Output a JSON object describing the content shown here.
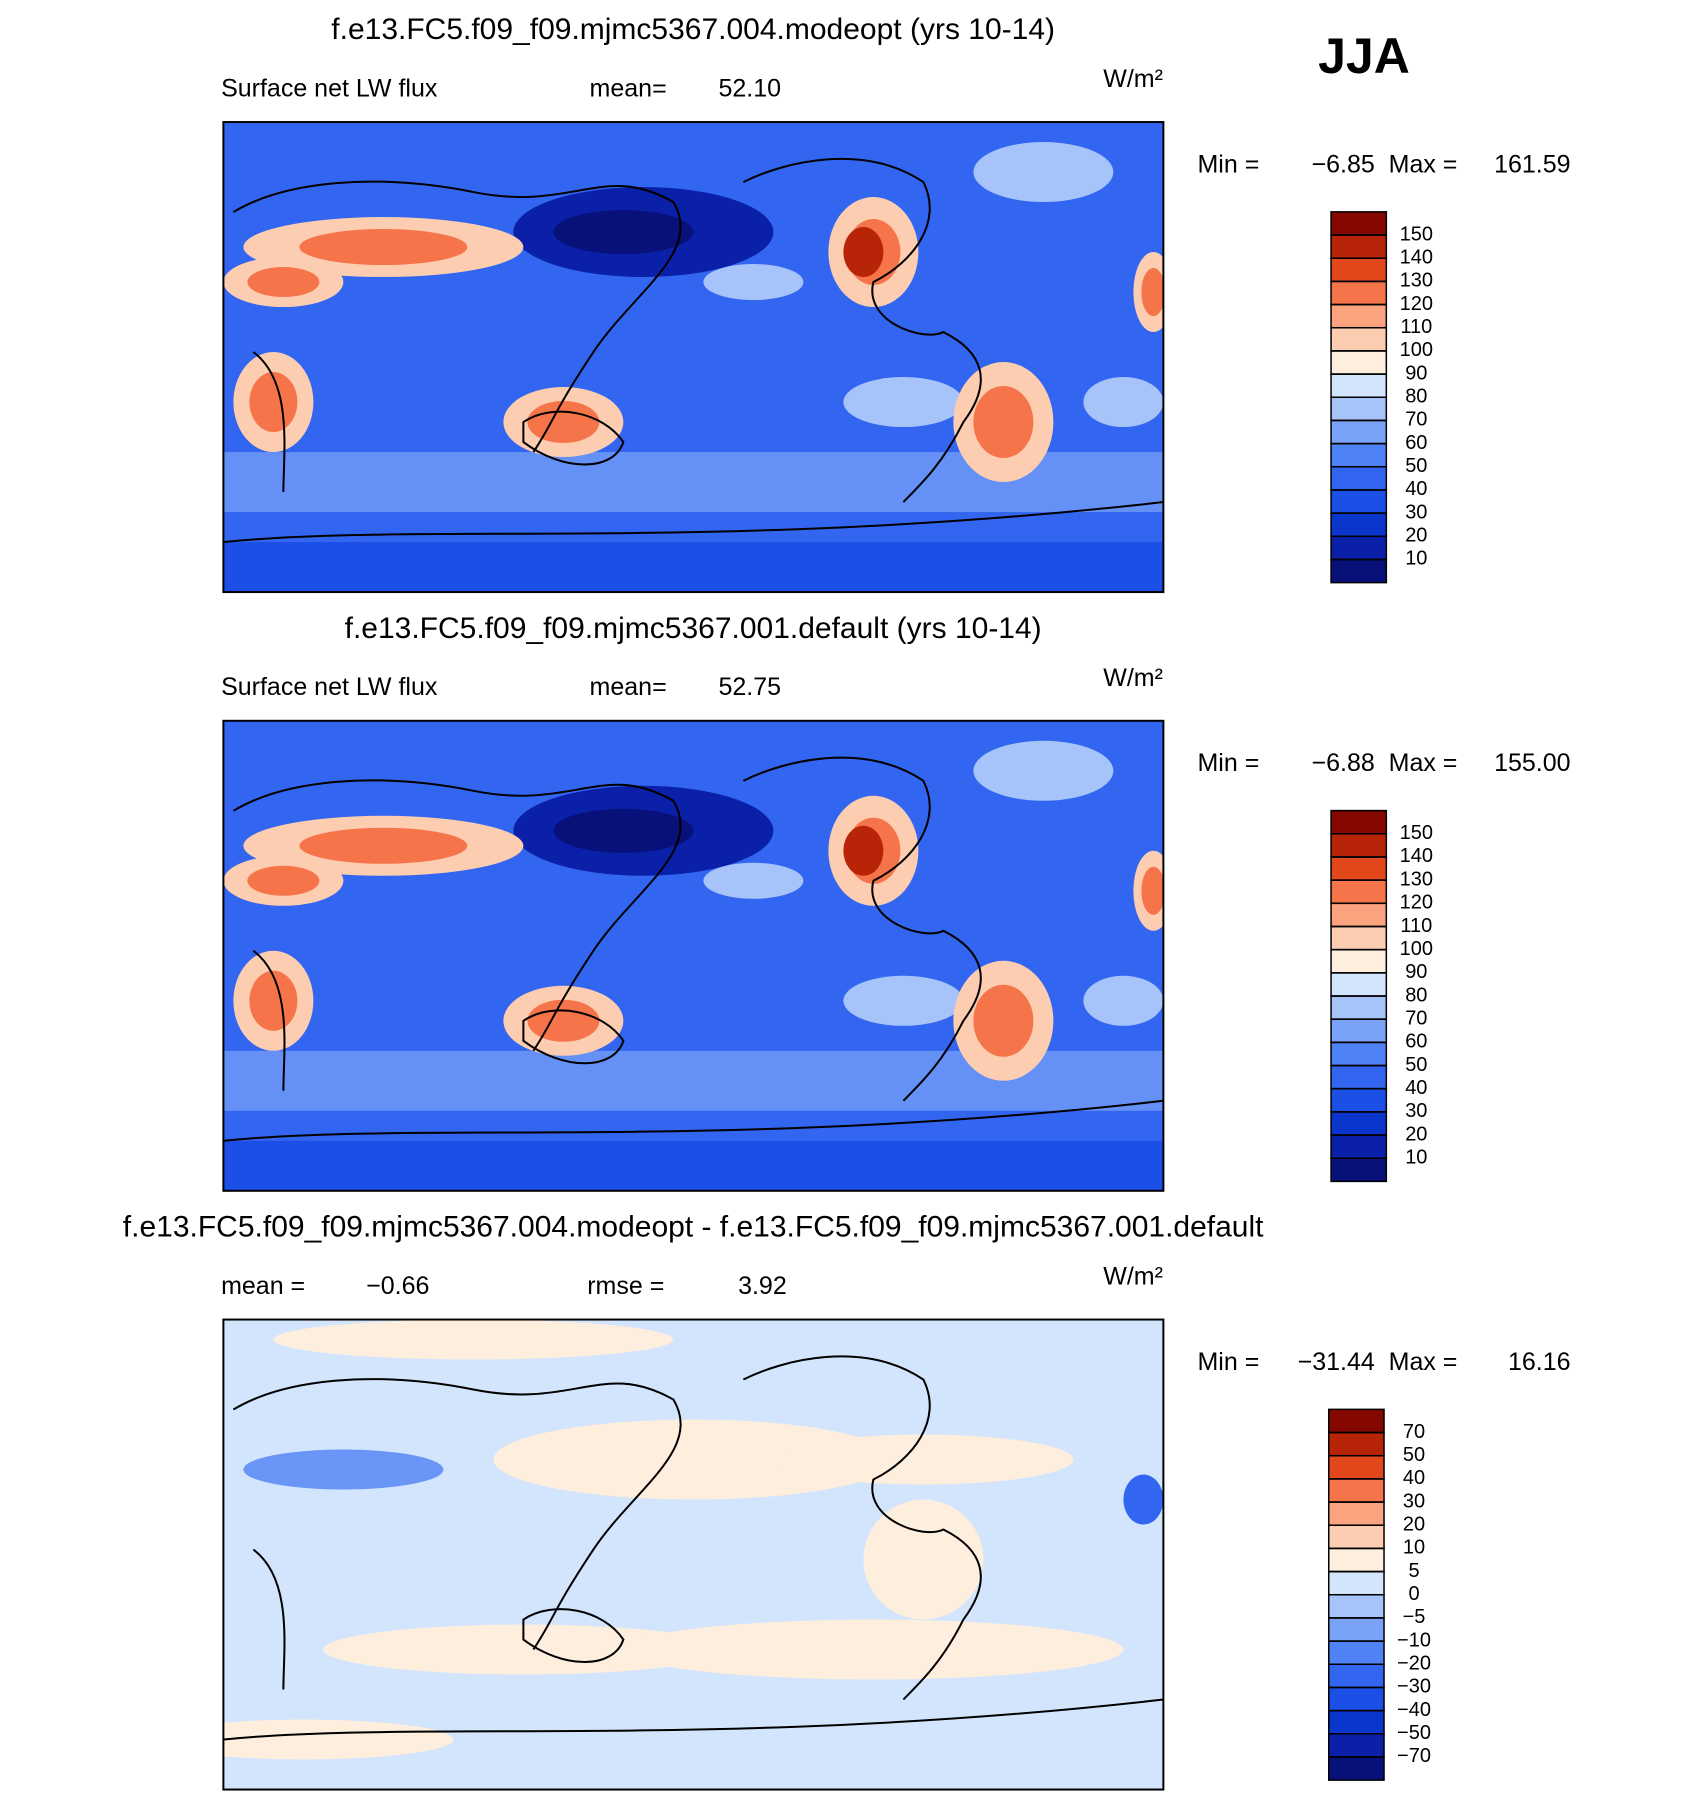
{
  "chart_data": [
    {
      "type": "map",
      "title": "f.e13.FC5.f09_f09.mjmc5367.004.modeopt (yrs 10-14)",
      "header": [
        "Surface net LW flux",
        "mean=",
        "52.10"
      ],
      "units": "W/m²",
      "stats": [
        "Min =",
        "−6.85",
        "Max =",
        "161.59"
      ],
      "season": "JJA",
      "colorbar": {
        "levels": [
          10,
          20,
          30,
          40,
          50,
          60,
          70,
          80,
          90,
          100,
          110,
          120,
          130,
          140,
          150
        ],
        "colors": [
          "#08107a",
          "#0a20a8",
          "#0b36cc",
          "#1c4fe6",
          "#3366f0",
          "#4f82f4",
          "#7aa2f7",
          "#a6c3fa",
          "#d3e4fd",
          "#fdeedd",
          "#fccdb0",
          "#fba27e",
          "#f6744a",
          "#e3481c",
          "#b82408",
          "#850800"
        ]
      }
    },
    {
      "type": "map",
      "title": "f.e13.FC5.f09_f09.mjmc5367.001.default (yrs 10-14)",
      "header": [
        "Surface net LW flux",
        "mean=",
        "52.75"
      ],
      "units": "W/m²",
      "stats": [
        "Min =",
        "−6.88",
        "Max =",
        "155.00"
      ],
      "colorbar": {
        "levels": [
          10,
          20,
          30,
          40,
          50,
          60,
          70,
          80,
          90,
          100,
          110,
          120,
          130,
          140,
          150
        ],
        "colors": [
          "#08107a",
          "#0a20a8",
          "#0b36cc",
          "#1c4fe6",
          "#3366f0",
          "#4f82f4",
          "#7aa2f7",
          "#a6c3fa",
          "#d3e4fd",
          "#fdeedd",
          "#fccdb0",
          "#fba27e",
          "#f6744a",
          "#e3481c",
          "#b82408",
          "#850800"
        ]
      }
    },
    {
      "type": "map",
      "title": "f.e13.FC5.f09_f09.mjmc5367.004.modeopt - f.e13.FC5.f09_f09.mjmc5367.001.default",
      "header": [
        "mean =",
        "−0.66",
        "rmse =",
        "3.92"
      ],
      "units": "W/m²",
      "stats": [
        "Min =",
        "−31.44",
        "Max =",
        "16.16"
      ],
      "colorbar": {
        "levels": [
          {
            "value": -70,
            "label": "−70"
          },
          {
            "value": -50,
            "label": "−50"
          },
          {
            "value": -40,
            "label": "−40"
          },
          {
            "value": -30,
            "label": "−30"
          },
          {
            "value": -20,
            "label": "−20"
          },
          {
            "value": -10,
            "label": "−10"
          },
          {
            "value": -5,
            "label": "−5"
          },
          0,
          5,
          10,
          20,
          30,
          40,
          50,
          70
        ],
        "colors": [
          "#08107a",
          "#0a20a8",
          "#0b36cc",
          "#1c4fe6",
          "#3366f0",
          "#4f82f4",
          "#7aa2f7",
          "#a6c3fa",
          "#d3e4fd",
          "#fdeedd",
          "#fccdb0",
          "#fba27e",
          "#f6744a",
          "#e3481c",
          "#b82408",
          "#850800"
        ]
      }
    }
  ]
}
